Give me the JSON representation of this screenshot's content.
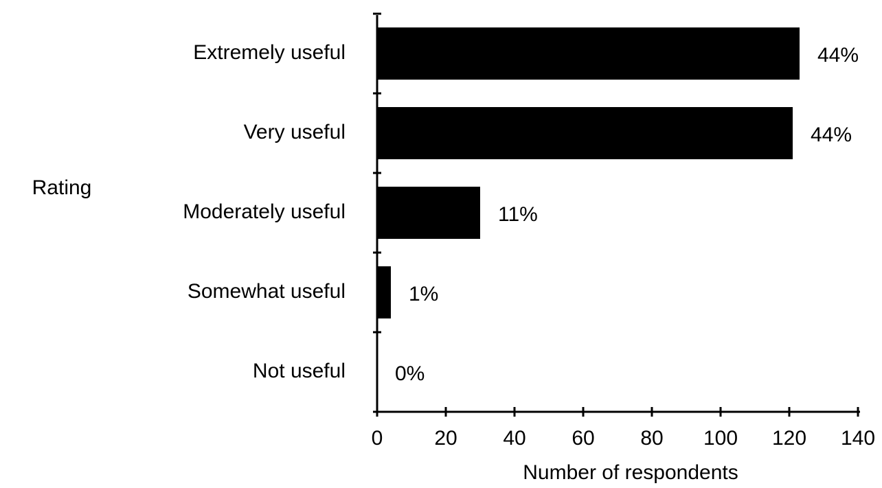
{
  "chart_data": {
    "type": "hbar",
    "y_label": "Rating",
    "x_label": "Number of respondents",
    "categories": [
      "Extremely useful",
      "Very useful",
      "Moderately useful",
      "Somewhat useful",
      "Not useful"
    ],
    "values": [
      123,
      121,
      30,
      4,
      0
    ],
    "percent_labels": [
      "44%",
      "44%",
      "11%",
      "1%",
      "0%"
    ],
    "color": "#000000",
    "xlim": [
      0,
      140
    ],
    "xticks": [
      0,
      20,
      40,
      60,
      80,
      100,
      120,
      140
    ],
    "grid": false
  }
}
